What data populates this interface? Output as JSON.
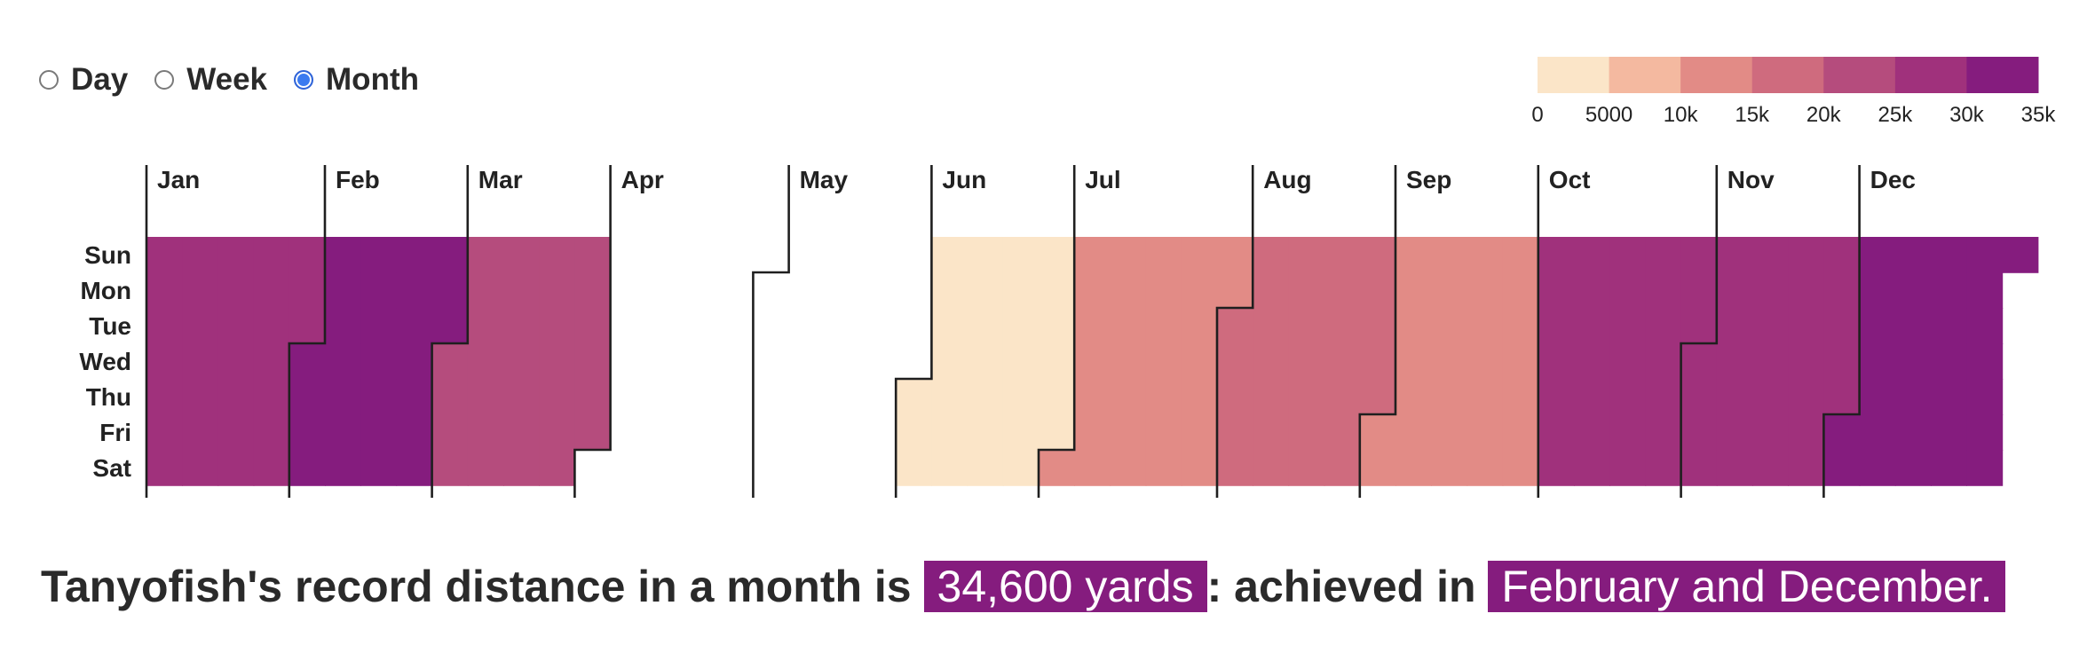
{
  "controls": {
    "options": [
      {
        "label": "Day",
        "selected": false
      },
      {
        "label": "Week",
        "selected": false
      },
      {
        "label": "Month",
        "selected": true
      }
    ]
  },
  "summary": {
    "prefix": "Tanyofish's record distance in a month is",
    "record_value": "34,600 yards",
    "middle": ": achieved in",
    "record_months": "February and December."
  },
  "chart_data": {
    "type": "heatmap",
    "granularity": "month",
    "unit": "yards",
    "days_of_week": [
      "Sun",
      "Mon",
      "Tue",
      "Wed",
      "Thu",
      "Fri",
      "Sat"
    ],
    "months": [
      {
        "label": "Jan",
        "value": 28000
      },
      {
        "label": "Feb",
        "value": 34600
      },
      {
        "label": "Mar",
        "value": 22000
      },
      {
        "label": "Apr",
        "value": 0
      },
      {
        "label": "May",
        "value": 0
      },
      {
        "label": "Jun",
        "value": 3000
      },
      {
        "label": "Jul",
        "value": 12000
      },
      {
        "label": "Aug",
        "value": 17000
      },
      {
        "label": "Sep",
        "value": 12000
      },
      {
        "label": "Oct",
        "value": 27000
      },
      {
        "label": "Nov",
        "value": 28000
      },
      {
        "label": "Dec",
        "value": 34600
      }
    ],
    "legend": {
      "colors": [
        "#fbe5c8",
        "#f4b9a0",
        "#e28b86",
        "#cf6b7e",
        "#b54c7d",
        "#a0317c",
        "#851c7e"
      ],
      "tick_labels": [
        "0",
        "5000",
        "10k",
        "15k",
        "20k",
        "25k",
        "30k",
        "35k"
      ],
      "domain": [
        0,
        35000
      ],
      "placement": "top-right"
    },
    "empty_color": "#ffffff"
  }
}
